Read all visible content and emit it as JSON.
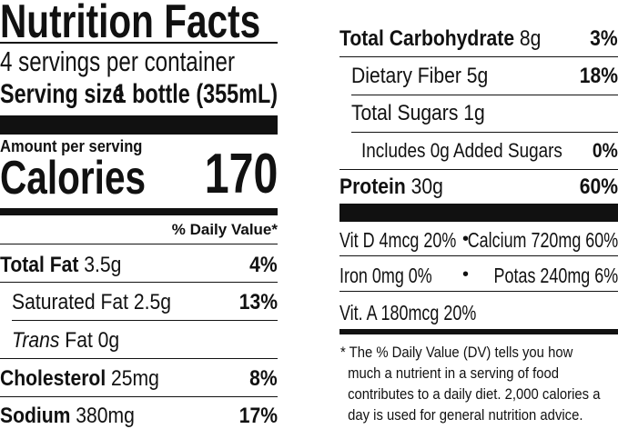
{
  "title": "Nutrition Facts",
  "servings_per_container": "4 servings per container",
  "serving_size": {
    "label": "Serving size",
    "value": "1 bottle (355mL)"
  },
  "amount_per_serving": "Amount per serving",
  "calories": {
    "label": "Calories",
    "value": "170"
  },
  "daily_value_header": "% Daily Value*",
  "nutrients_left": [
    {
      "name": "Total Fat",
      "amount": "3.5g",
      "dv": "4%"
    },
    {
      "name": "Saturated Fat",
      "amount": "2.5g",
      "dv": "13%"
    },
    {
      "name": "Trans",
      "amount": "Fat 0g",
      "dv": ""
    },
    {
      "name": "Cholesterol",
      "amount": "25mg",
      "dv": "8%"
    },
    {
      "name": "Sodium",
      "amount": "380mg",
      "dv": "17%"
    }
  ],
  "nutrients_right": [
    {
      "name": "Total Carbohydrate",
      "amount": "8g",
      "dv": "3%"
    },
    {
      "name": "Dietary Fiber",
      "amount": "5g",
      "dv": "18%"
    },
    {
      "name": "Total Sugars",
      "amount": "1g",
      "dv": ""
    },
    {
      "name": "Includes 0g Added Sugars",
      "amount": "",
      "dv": "0%"
    },
    {
      "name": "Protein",
      "amount": "30g",
      "dv": "60%"
    }
  ],
  "vitamins": [
    {
      "left": "Vit D 4mcg 20%",
      "right": "Calcium 720mg 60%"
    },
    {
      "left": "Iron 0mg 0%",
      "right": "Potas 240mg 6%"
    },
    {
      "left": "Vit. A 180mcg 20%",
      "right": ""
    }
  ],
  "bullet": "•",
  "footnote": [
    "* The % Daily Value (DV) tells you how",
    "much a nutrient in a serving of food",
    "contributes to a daily diet. 2,000 calories a",
    "day is used for general nutrition advice."
  ]
}
